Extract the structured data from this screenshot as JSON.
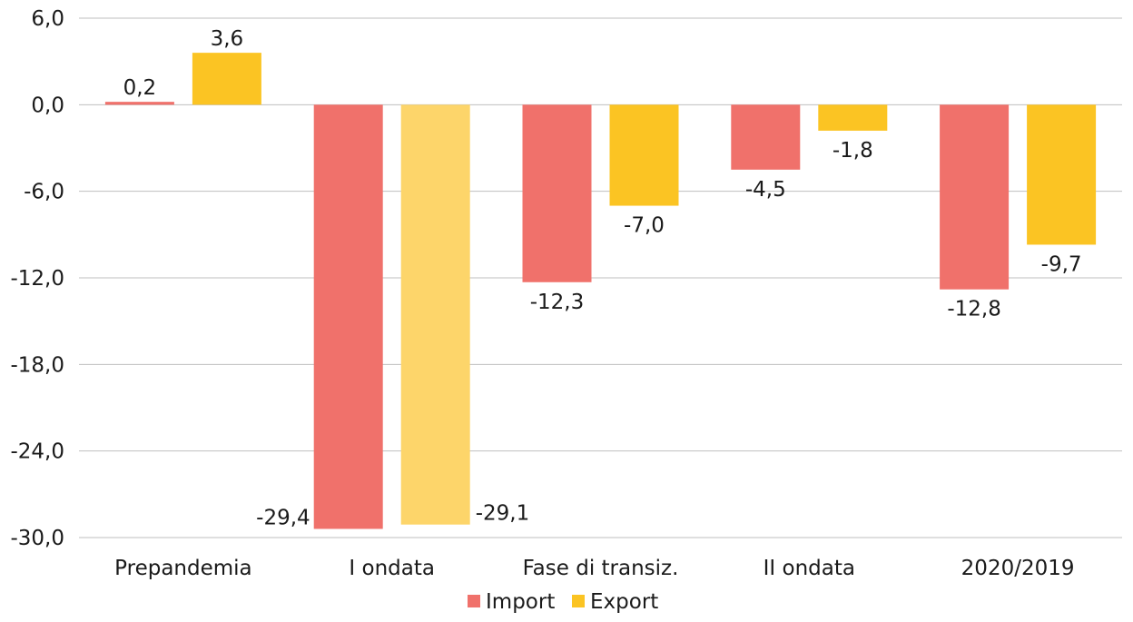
{
  "chart_data": {
    "type": "bar",
    "title": "",
    "xlabel": "",
    "ylabel": "",
    "ylim": [
      -30,
      6
    ],
    "yticks": [
      6,
      0,
      -6,
      -12,
      -18,
      -24,
      -30
    ],
    "ytick_labels": [
      "6,0",
      "0,0",
      "-6,0",
      "-12,0",
      "-18,0",
      "-24,0",
      "-30,0"
    ],
    "categories": [
      "Prepandemia",
      "I ondata",
      "Fase di transiz.",
      "II ondata",
      "2020/2019"
    ],
    "series": [
      {
        "name": "Import",
        "color": "#f0716b",
        "values": [
          0.2,
          -29.4,
          -12.3,
          -4.5,
          -12.8
        ],
        "labels": [
          "0,2",
          "-29,4",
          "-12,3",
          "-4,5",
          "-12,8"
        ]
      },
      {
        "name": "Export",
        "color": "#fbc423",
        "values": [
          3.6,
          -29.1,
          -7.0,
          -1.8,
          -9.7
        ],
        "labels": [
          "3,6",
          "-29,1",
          "-7,0",
          "-1,8",
          "-9,7"
        ]
      }
    ],
    "highlight": {
      "series": 1,
      "category": 1,
      "color": "#fdd56a"
    },
    "grid": true,
    "legend_position": "bottom-center"
  }
}
